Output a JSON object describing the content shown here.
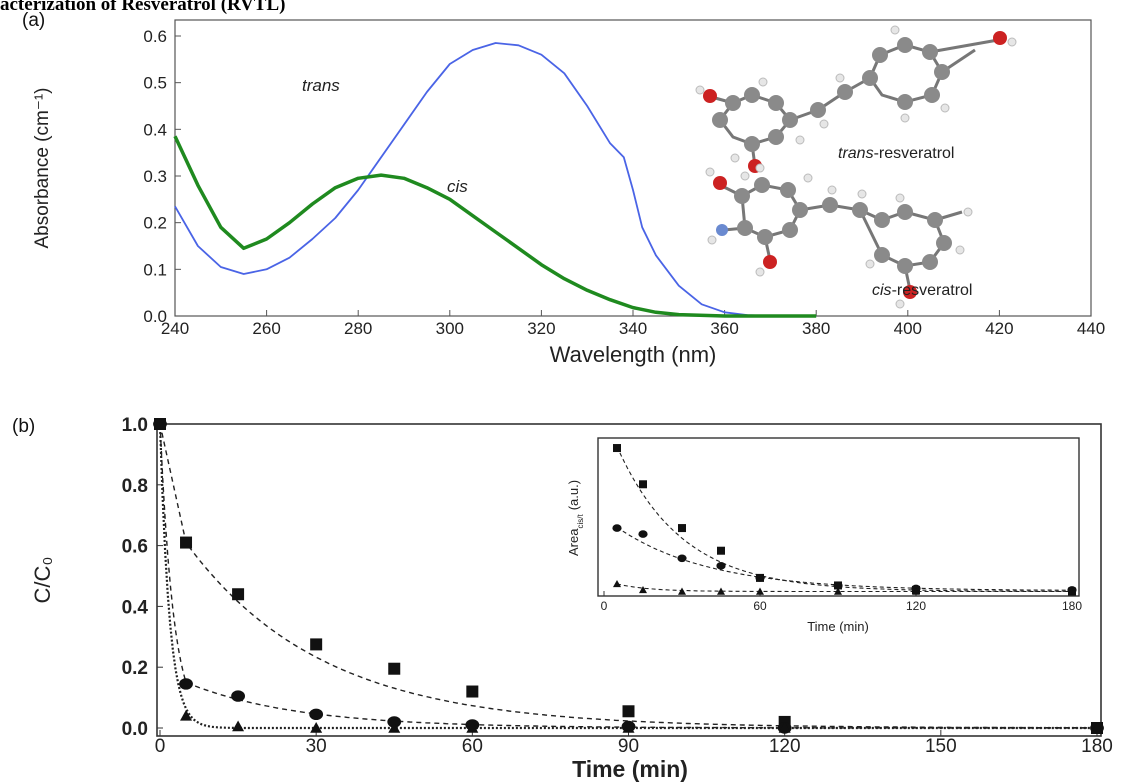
{
  "heading": "acterization of Resveratrol (RVTL)",
  "chart_data": [
    {
      "panel_label": "(a)",
      "type": "line",
      "xlabel": "Wavelength (nm)",
      "ylabel": "Absorbance (cm⁻¹)",
      "xlim": [
        240,
        440
      ],
      "ylim": [
        0,
        0.6
      ],
      "xticks": [
        "240",
        "260",
        "280",
        "300",
        "320",
        "340",
        "360",
        "380",
        "400",
        "420",
        "440"
      ],
      "yticks": [
        "0.0",
        "0.1",
        "0.2",
        "0.3",
        "0.4",
        "0.5",
        "0.6"
      ],
      "series": [
        {
          "name": "trans",
          "color": "#4a64e6",
          "x": [
            240,
            245,
            250,
            255,
            260,
            265,
            270,
            275,
            280,
            285,
            290,
            295,
            300,
            305,
            310,
            315,
            320,
            325,
            330,
            335,
            338,
            340,
            342,
            345,
            350,
            355,
            360,
            365,
            370,
            375,
            380
          ],
          "y": [
            0.235,
            0.15,
            0.105,
            0.09,
            0.1,
            0.125,
            0.165,
            0.21,
            0.27,
            0.34,
            0.41,
            0.48,
            0.54,
            0.57,
            0.585,
            0.58,
            0.56,
            0.52,
            0.45,
            0.37,
            0.34,
            0.27,
            0.19,
            0.13,
            0.065,
            0.025,
            0.008,
            0.002,
            0,
            0,
            0
          ]
        },
        {
          "name": "cis",
          "color": "#1f8a1f",
          "x": [
            240,
            245,
            250,
            255,
            260,
            265,
            270,
            275,
            280,
            285,
            290,
            295,
            300,
            305,
            310,
            315,
            320,
            325,
            330,
            335,
            340,
            345,
            350,
            360,
            370,
            380
          ],
          "y": [
            0.385,
            0.28,
            0.19,
            0.145,
            0.165,
            0.2,
            0.24,
            0.275,
            0.295,
            0.302,
            0.295,
            0.275,
            0.25,
            0.215,
            0.18,
            0.145,
            0.11,
            0.08,
            0.055,
            0.035,
            0.018,
            0.008,
            0.003,
            0,
            0,
            0
          ]
        }
      ],
      "annotations": {
        "trans_label": "trans",
        "cis_label": "cis",
        "trans_structure_italic": "trans",
        "trans_structure_rest": "-resveratrol",
        "cis_structure_italic": "cis",
        "cis_structure_rest": "-resveratrol"
      }
    },
    {
      "panel_label": "(b)",
      "type": "scatter",
      "xlabel": "Time (min)",
      "ylabel": "C/C₀",
      "xlim": [
        0,
        180
      ],
      "ylim": [
        0,
        1.0
      ],
      "xticks": [
        "0",
        "30",
        "60",
        "90",
        "120",
        "150",
        "180"
      ],
      "yticks": [
        "0.0",
        "0.2",
        "0.4",
        "0.6",
        "0.8",
        "1.0"
      ],
      "series": [
        {
          "marker": "square",
          "x": [
            0,
            5,
            15,
            30,
            45,
            60,
            90,
            120,
            180
          ],
          "y": [
            1.0,
            0.61,
            0.44,
            0.275,
            0.195,
            0.12,
            0.055,
            0.02,
            0.0
          ]
        },
        {
          "marker": "circle",
          "x": [
            0,
            5,
            15,
            30,
            45,
            60,
            90,
            120,
            180
          ],
          "y": [
            1.0,
            0.145,
            0.105,
            0.045,
            0.02,
            0.01,
            0.005,
            0.0,
            0.0
          ]
        },
        {
          "marker": "triangle",
          "x": [
            0,
            5,
            15,
            30,
            45,
            60,
            90,
            120,
            180
          ],
          "y": [
            1.0,
            0.04,
            0.005,
            0.0,
            0.0,
            0.0,
            0.0,
            0.0,
            0.0
          ]
        }
      ],
      "inset": {
        "xlabel": "Time (min)",
        "ylabel_main": "Area",
        "ylabel_sub": "cis/t",
        "ylabel_unit": "(a.u.)",
        "xlim": [
          0,
          180
        ],
        "ylim": [
          0,
          1.0
        ],
        "xticks": [
          "0",
          "60",
          "120",
          "180"
        ],
        "series": [
          {
            "marker": "square",
            "x": [
              5,
              15,
              30,
              45,
              60,
              90,
              120,
              180
            ],
            "y": [
              0.96,
              0.72,
              0.43,
              0.28,
              0.1,
              0.05,
              0.02,
              0.01
            ]
          },
          {
            "marker": "circle",
            "x": [
              5,
              15,
              30,
              45,
              60,
              90,
              120,
              180
            ],
            "y": [
              0.43,
              0.39,
              0.23,
              0.18,
              0.1,
              0.05,
              0.03,
              0.02
            ]
          },
          {
            "marker": "triangle",
            "x": [
              5,
              15,
              30,
              45,
              60,
              90,
              120,
              180
            ],
            "y": [
              0.06,
              0.02,
              0.01,
              0.01,
              0.01,
              0.01,
              0.01,
              0.01
            ]
          }
        ]
      }
    }
  ]
}
